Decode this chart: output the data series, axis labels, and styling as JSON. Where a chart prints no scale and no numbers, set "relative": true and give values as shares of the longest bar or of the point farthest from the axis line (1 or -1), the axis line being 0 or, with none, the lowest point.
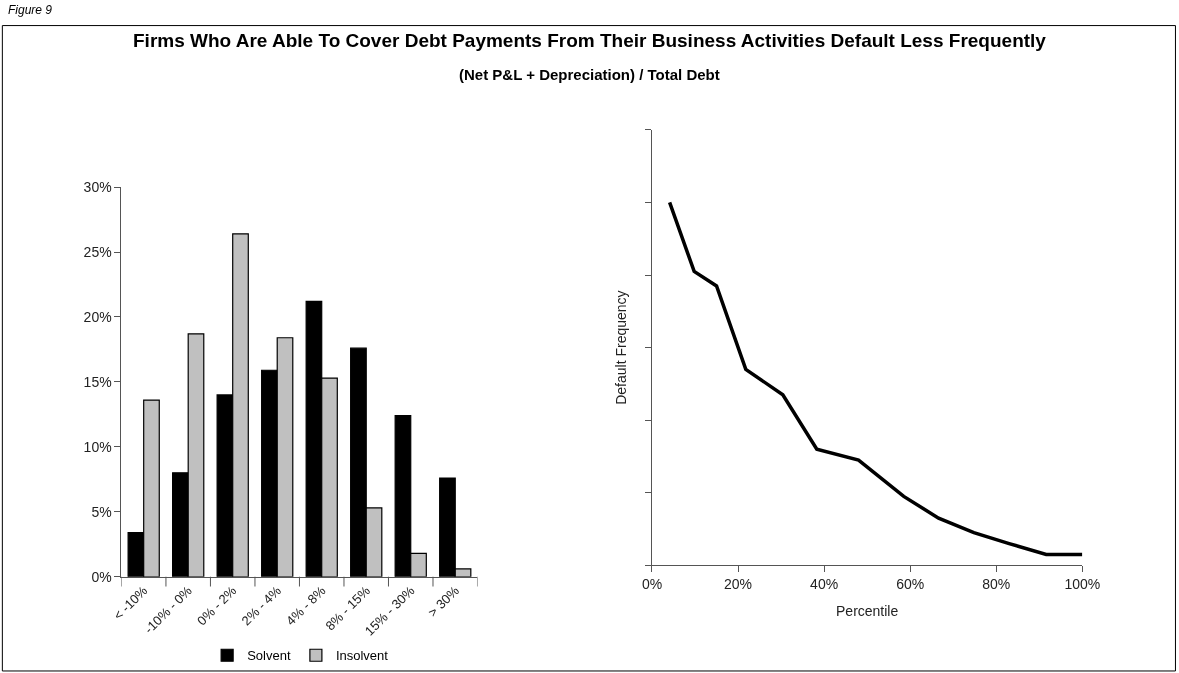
{
  "chart_data": [
    {
      "type": "bar",
      "title": "Firms Who Are Able To Cover Debt Payments From Their Business Activities Default Less Frequently",
      "subtitle": "(Net P&L + Depreciation) / Total Debt",
      "annotations": [
        "Figure 9"
      ],
      "categories": [
        "< -10%",
        "-10% - 0%",
        "0% - 2%",
        "2% - 4%",
        "4% - 8%",
        "8% - 15%",
        "15% - 30%",
        "> 30%"
      ],
      "series": [
        {
          "name": "Solvent",
          "color": "#000000",
          "values": [
            3.4,
            8.0,
            14.0,
            15.9,
            21.2,
            17.6,
            12.4,
            7.6
          ]
        },
        {
          "name": "Insolvent",
          "color": "#c0c0c0",
          "values": [
            13.6,
            18.7,
            26.4,
            18.4,
            15.3,
            5.3,
            1.8,
            0.6
          ]
        }
      ],
      "ylim": [
        0,
        30
      ],
      "yticks": [
        {
          "value": 0,
          "label": "0%"
        },
        {
          "value": 5,
          "label": "5%"
        },
        {
          "value": 10,
          "label": "10%"
        },
        {
          "value": 15,
          "label": "15%"
        },
        {
          "value": 20,
          "label": "20%"
        },
        {
          "value": 25,
          "label": "25%"
        },
        {
          "value": 30,
          "label": "30%"
        }
      ],
      "legend": "bottom"
    },
    {
      "type": "line",
      "xlabel": "Percentile",
      "ylabel": "Default Frequency",
      "relative": true,
      "tick_labels": "x",
      "x": [
        4.1,
        9.8,
        15.0,
        21.8,
        30.4,
        38.3,
        48.0,
        58.5,
        66.6,
        74.8,
        83.0,
        91.6,
        100
      ],
      "series": [
        {
          "color": "#000000",
          "values": [
            1,
            0.81,
            0.77,
            0.54,
            0.47,
            0.32,
            0.29,
            0.19,
            0.13,
            0.09,
            0.06,
            0.03,
            0.03
          ]
        }
      ],
      "xlim": [
        0,
        100
      ],
      "xticks": [
        {
          "value": 0,
          "label": "0%"
        },
        {
          "value": 20,
          "label": "20%"
        },
        {
          "value": 40,
          "label": "40%"
        },
        {
          "value": 60,
          "label": "60%"
        },
        {
          "value": 80,
          "label": "80%"
        },
        {
          "value": 100,
          "label": "100%"
        }
      ],
      "marker": "none",
      "line_style": "solid"
    }
  ]
}
